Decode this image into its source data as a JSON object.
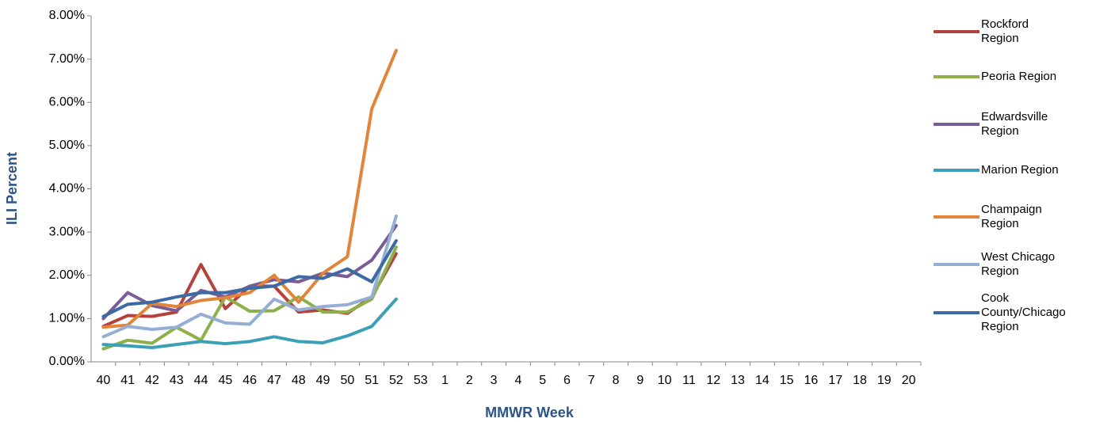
{
  "chart_data": {
    "type": "line",
    "y_label": "ILI Percent",
    "x_label": "MMWR Week",
    "categories": [
      "40",
      "41",
      "42",
      "43",
      "44",
      "45",
      "46",
      "47",
      "48",
      "49",
      "50",
      "51",
      "52",
      "53",
      "1",
      "2",
      "3",
      "4",
      "5",
      "6",
      "7",
      "8",
      "9",
      "10",
      "11",
      "12",
      "13",
      "14",
      "15",
      "16",
      "17",
      "18",
      "19",
      "20"
    ],
    "ylim": [
      0,
      8
    ],
    "yticks": [
      {
        "value": 0,
        "label": "0.00%"
      },
      {
        "value": 1,
        "label": "1.00%"
      },
      {
        "value": 2,
        "label": "2.00%"
      },
      {
        "value": 3,
        "label": "3.00%"
      },
      {
        "value": 4,
        "label": "4.00%"
      },
      {
        "value": 5,
        "label": "5.00%"
      },
      {
        "value": 6,
        "label": "6.00%"
      },
      {
        "value": 7,
        "label": "7.00%"
      },
      {
        "value": 8,
        "label": "8.00%"
      }
    ],
    "grid": false,
    "legend": "right",
    "series": [
      {
        "name": "Rockford Region",
        "color": "#b5413c",
        "values": [
          0.82,
          1.07,
          1.05,
          1.15,
          2.25,
          1.23,
          1.75,
          1.75,
          1.15,
          1.2,
          1.12,
          1.5,
          2.5,
          null,
          null,
          null,
          null,
          null,
          null,
          null,
          null,
          null,
          null,
          null,
          null,
          null,
          null,
          null,
          null,
          null,
          null,
          null,
          null,
          null
        ]
      },
      {
        "name": "Peoria Region",
        "color": "#8db04a",
        "values": [
          0.3,
          0.5,
          0.43,
          0.8,
          0.5,
          1.5,
          1.17,
          1.18,
          1.5,
          1.15,
          1.15,
          1.45,
          2.65,
          null,
          null,
          null,
          null,
          null,
          null,
          null,
          null,
          null,
          null,
          null,
          null,
          null,
          null,
          null,
          null,
          null,
          null,
          null,
          null,
          null
        ]
      },
      {
        "name": "Edwardsville Region",
        "color": "#7a5c96",
        "values": [
          1.0,
          1.6,
          1.3,
          1.18,
          1.65,
          1.5,
          1.75,
          1.9,
          1.85,
          2.05,
          1.97,
          2.35,
          3.15,
          null,
          null,
          null,
          null,
          null,
          null,
          null,
          null,
          null,
          null,
          null,
          null,
          null,
          null,
          null,
          null,
          null,
          null,
          null,
          null,
          null
        ]
      },
      {
        "name": "Marion Region",
        "color": "#3b9fb5",
        "values": [
          0.4,
          0.37,
          0.33,
          0.4,
          0.47,
          0.42,
          0.47,
          0.58,
          0.47,
          0.44,
          0.6,
          0.82,
          1.45,
          null,
          null,
          null,
          null,
          null,
          null,
          null,
          null,
          null,
          null,
          null,
          null,
          null,
          null,
          null,
          null,
          null,
          null,
          null,
          null,
          null
        ]
      },
      {
        "name": "Champaign Region",
        "color": "#e2843a",
        "values": [
          0.8,
          0.85,
          1.35,
          1.28,
          1.42,
          1.48,
          1.6,
          2.0,
          1.38,
          2.05,
          2.43,
          5.85,
          7.2,
          null,
          null,
          null,
          null,
          null,
          null,
          null,
          null,
          null,
          null,
          null,
          null,
          null,
          null,
          null,
          null,
          null,
          null,
          null,
          null,
          null
        ]
      },
      {
        "name": "West Chicago Region",
        "color": "#95aed3",
        "values": [
          0.58,
          0.82,
          0.75,
          0.8,
          1.1,
          0.9,
          0.87,
          1.45,
          1.2,
          1.28,
          1.32,
          1.5,
          3.37,
          null,
          null,
          null,
          null,
          null,
          null,
          null,
          null,
          null,
          null,
          null,
          null,
          null,
          null,
          null,
          null,
          null,
          null,
          null,
          null,
          null
        ]
      },
      {
        "name": "Cook County/Chicago Region",
        "color": "#3d6aa3",
        "values": [
          1.05,
          1.33,
          1.38,
          1.5,
          1.6,
          1.6,
          1.7,
          1.75,
          1.97,
          1.93,
          2.15,
          1.85,
          2.8,
          null,
          null,
          null,
          null,
          null,
          null,
          null,
          null,
          null,
          null,
          null,
          null,
          null,
          null,
          null,
          null,
          null,
          null,
          null,
          null,
          null
        ]
      }
    ]
  }
}
